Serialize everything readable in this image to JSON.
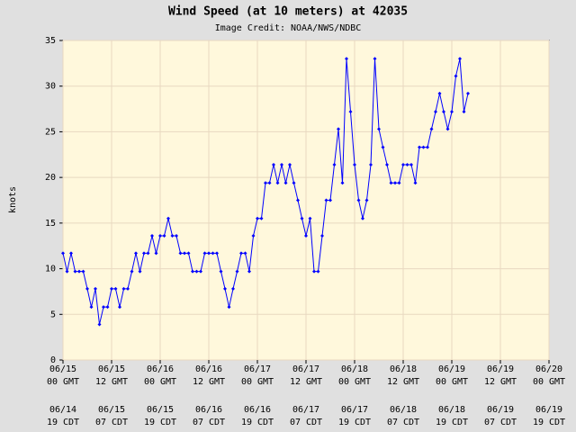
{
  "chart_data": {
    "type": "line",
    "title": "Wind Speed (at 10 meters) at 42035",
    "subtitle": "Image Credit: NOAA/NWS/NDBC",
    "y_label": "knots",
    "x": [
      0,
      1,
      2,
      3,
      4,
      5,
      6,
      7,
      8,
      9,
      10,
      11,
      12,
      13,
      14,
      15,
      16,
      17,
      18,
      19,
      20,
      21,
      22,
      23,
      24,
      25,
      26,
      27,
      28,
      29,
      30,
      31,
      32,
      33,
      34,
      35,
      36,
      37,
      38,
      39,
      40,
      41,
      42,
      43,
      44,
      45,
      46,
      47,
      48,
      49,
      50,
      51,
      52,
      53,
      54,
      55,
      56,
      57,
      58,
      59,
      60,
      61,
      62,
      63,
      64,
      65,
      66,
      67,
      68,
      69,
      70,
      71,
      72,
      73,
      74,
      75,
      76,
      77,
      78,
      79,
      80,
      81,
      82,
      83,
      84,
      85,
      86,
      87,
      88,
      89,
      90,
      91,
      92,
      93,
      94,
      95,
      96,
      97,
      98,
      99,
      100
    ],
    "series": [
      {
        "name": "Wind Speed",
        "color": "#0000ff",
        "values": [
          11.7,
          9.7,
          11.7,
          9.7,
          9.7,
          9.7,
          7.8,
          5.8,
          7.8,
          3.9,
          5.8,
          5.8,
          7.8,
          7.8,
          5.8,
          7.8,
          7.8,
          9.7,
          11.7,
          9.7,
          11.7,
          11.7,
          13.6,
          11.7,
          13.6,
          13.6,
          15.5,
          13.6,
          13.6,
          11.7,
          11.7,
          11.7,
          9.7,
          9.7,
          9.7,
          11.7,
          11.7,
          11.7,
          11.7,
          9.7,
          7.8,
          5.8,
          7.8,
          9.7,
          11.7,
          11.7,
          9.7,
          13.6,
          15.5,
          15.5,
          19.4,
          19.4,
          21.4,
          19.4,
          21.4,
          19.4,
          21.4,
          19.4,
          17.5,
          15.5,
          13.6,
          15.5,
          9.7,
          9.7,
          13.6,
          17.5,
          17.5,
          21.4,
          25.3,
          19.4,
          33.0,
          27.2,
          21.4,
          17.5,
          15.5,
          17.5,
          21.4,
          33.0,
          25.3,
          23.3,
          21.4,
          19.4,
          19.4,
          19.4,
          21.4,
          21.4,
          21.4,
          19.4,
          23.3,
          23.3,
          23.3,
          25.3,
          27.2,
          29.2,
          27.2,
          25.3,
          27.2,
          31.1,
          33.0,
          27.2,
          29.2
        ]
      }
    ],
    "xlim": [
      0,
      120
    ],
    "xticks": [
      {
        "value": 0,
        "label": "06/15 00 GMT"
      },
      {
        "value": 12,
        "label": "06/15 12 GMT"
      },
      {
        "value": 24,
        "label": "06/16 00 GMT"
      },
      {
        "value": 36,
        "label": "06/16 12 GMT"
      },
      {
        "value": 48,
        "label": "06/17 00 GMT"
      },
      {
        "value": 60,
        "label": "06/17 12 GMT"
      },
      {
        "value": 72,
        "label": "06/18 00 GMT"
      },
      {
        "value": 84,
        "label": "06/18 12 GMT"
      },
      {
        "value": 96,
        "label": "06/19 00 GMT"
      },
      {
        "value": 108,
        "label": "06/19 12 GMT"
      },
      {
        "value": 120,
        "label": "06/20 00 GMT"
      }
    ],
    "xticks_local": [
      "06/14 19 CDT",
      "06/15 07 CDT",
      "06/15 19 CDT",
      "06/16 07 CDT",
      "06/16 19 CDT",
      "06/17 07 CDT",
      "06/17 19 CDT",
      "06/18 07 CDT",
      "06/18 19 CDT",
      "06/19 07 CDT",
      "06/19 19 CDT"
    ],
    "ylim": [
      0,
      35
    ],
    "yticks": [
      0,
      5,
      10,
      15,
      20,
      25,
      30,
      35
    ],
    "grid": true
  }
}
